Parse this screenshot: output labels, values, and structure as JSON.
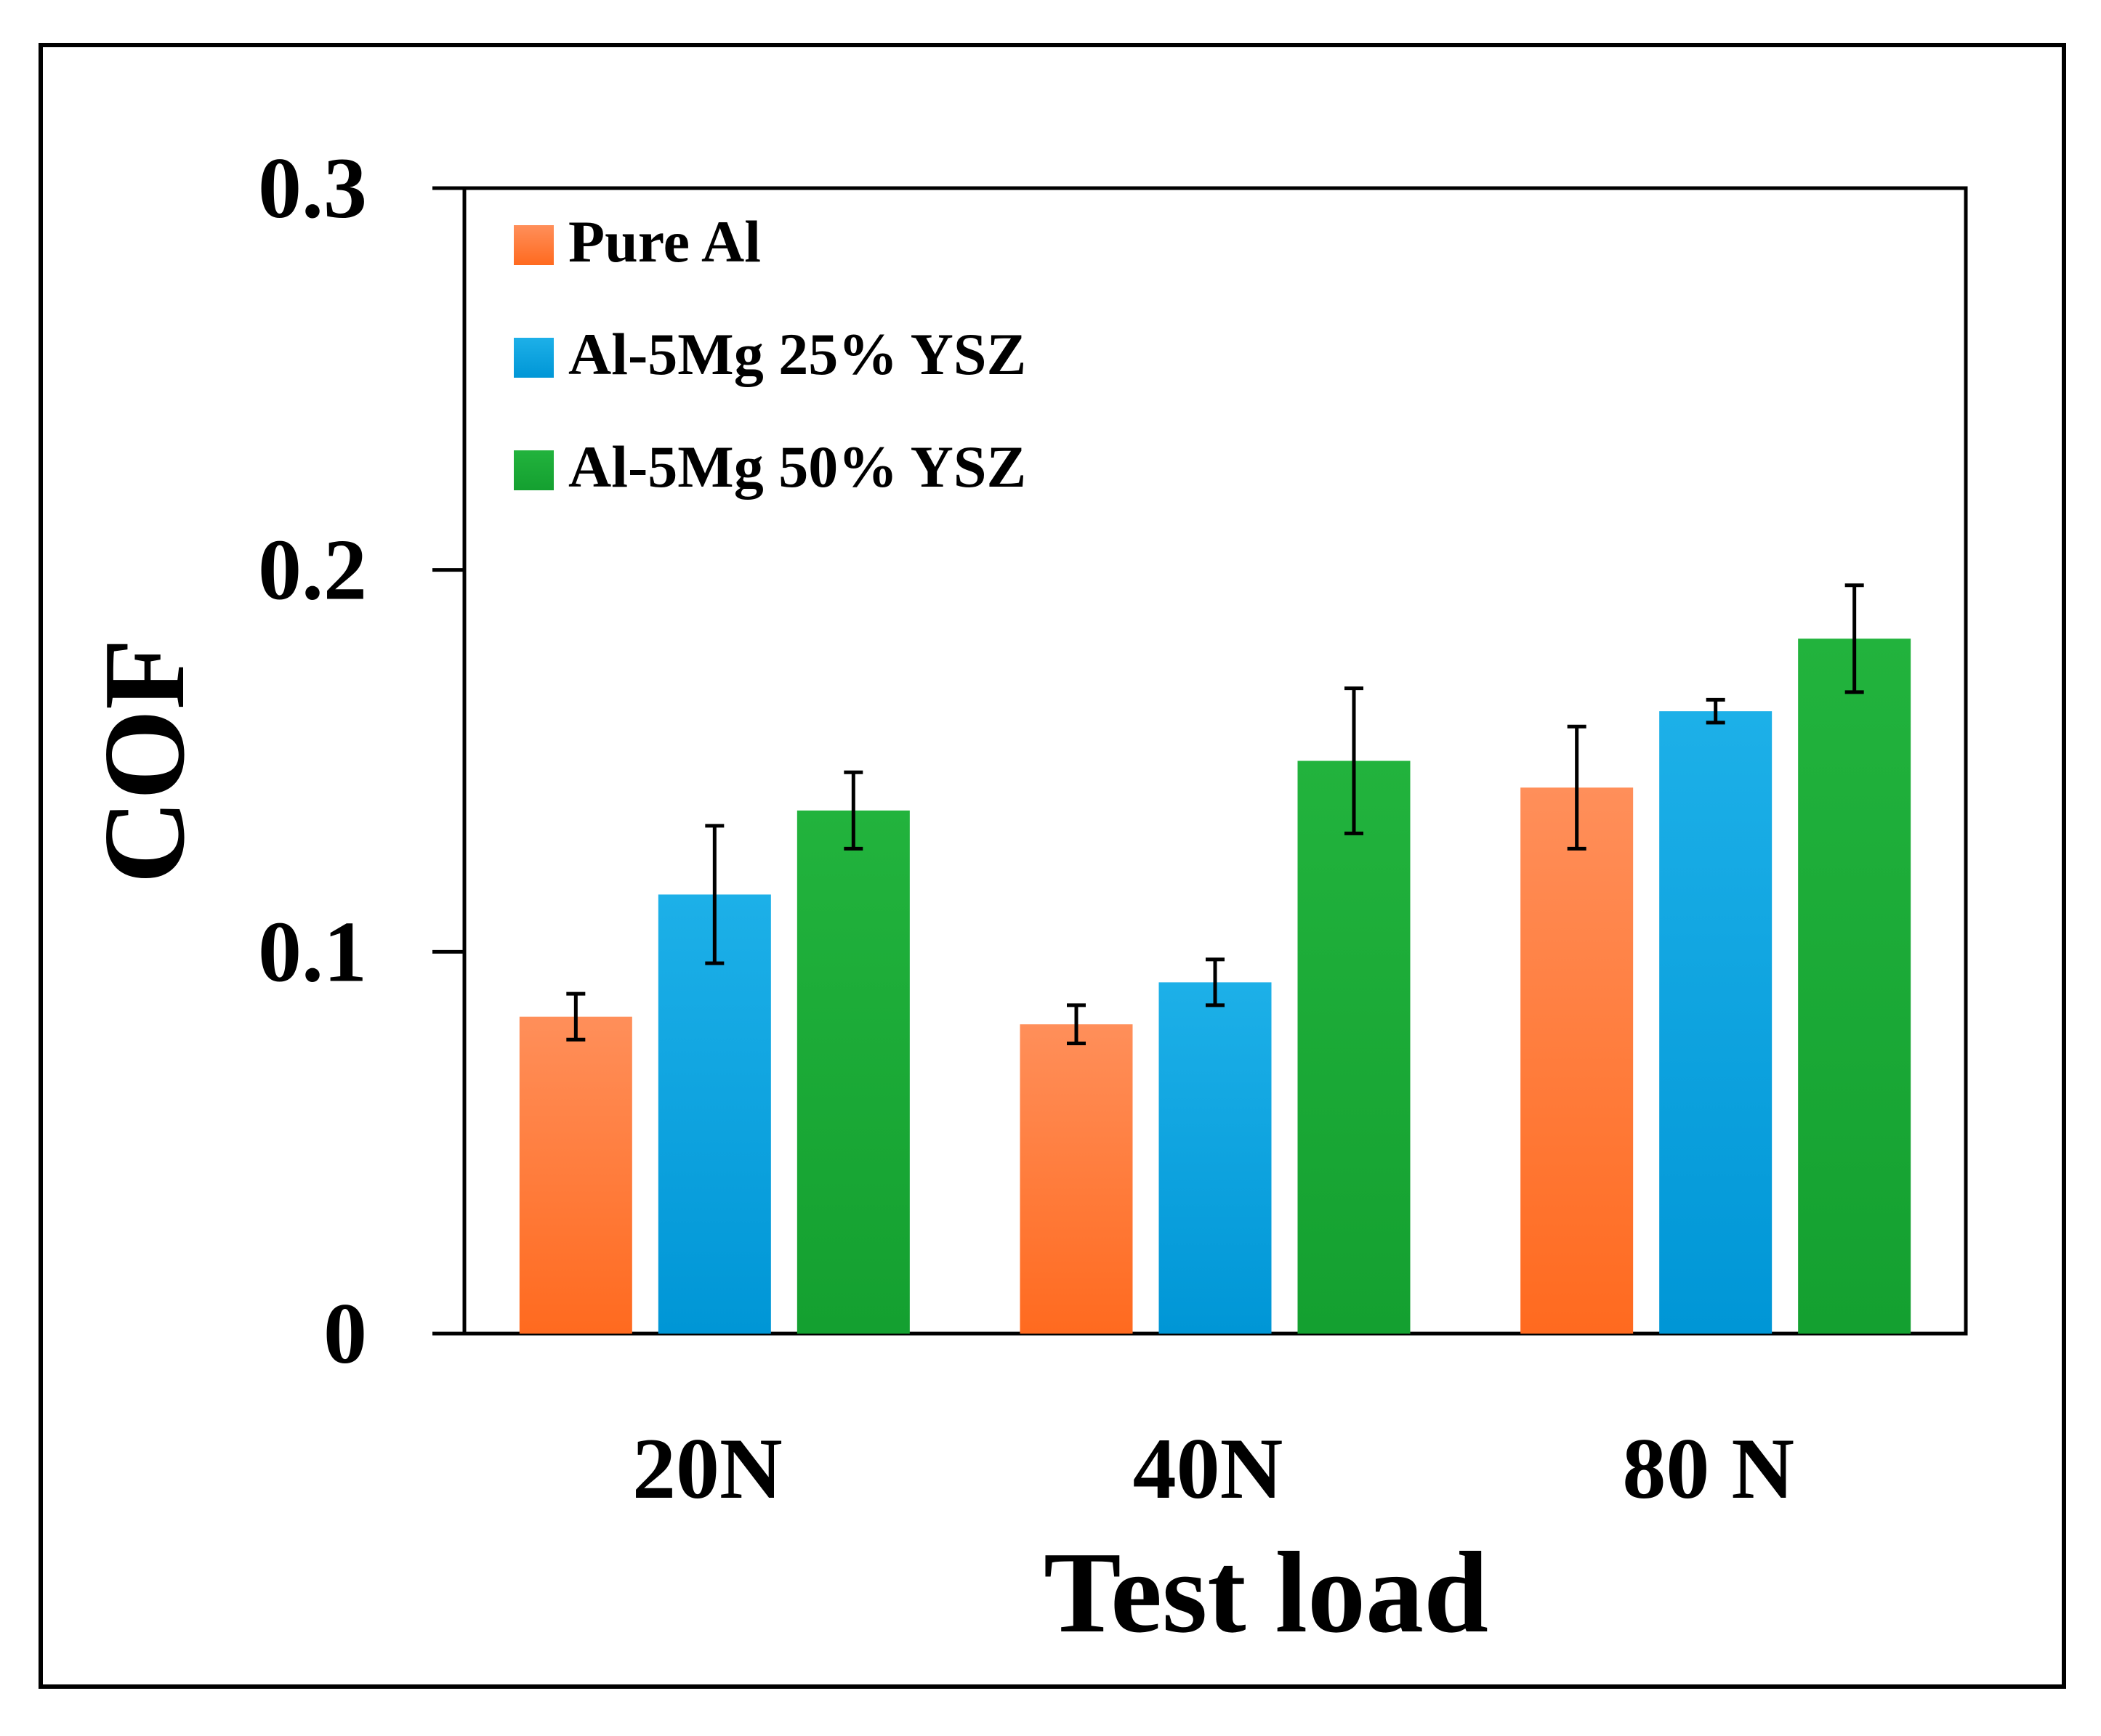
{
  "chart_data": {
    "type": "bar",
    "title": "",
    "xlabel": "Test load",
    "ylabel": "COF",
    "categories": [
      "20N",
      "40N",
      "80 N"
    ],
    "ylim": [
      0,
      0.3
    ],
    "yticks": [
      "0",
      "0.1",
      "0.2",
      "0.3"
    ],
    "legend_position": "top-left",
    "series": [
      {
        "name": "Pure Al",
        "values": [
          0.083,
          0.081,
          0.143
        ],
        "errors": [
          0.006,
          0.005,
          0.016
        ],
        "color": "#FF6A1F",
        "color_light": "#FF8F5A"
      },
      {
        "name": "Al-5Mg 25% YSZ",
        "values": [
          0.115,
          0.092,
          0.163
        ],
        "errors": [
          0.018,
          0.006,
          0.003
        ],
        "color": "#0096D6",
        "color_light": "#1DB0E8"
      },
      {
        "name": "Al-5Mg 50% YSZ",
        "values": [
          0.137,
          0.15,
          0.182
        ],
        "errors": [
          0.01,
          0.019,
          0.014
        ],
        "color": "#14A030",
        "color_light": "#22B33D"
      }
    ]
  }
}
